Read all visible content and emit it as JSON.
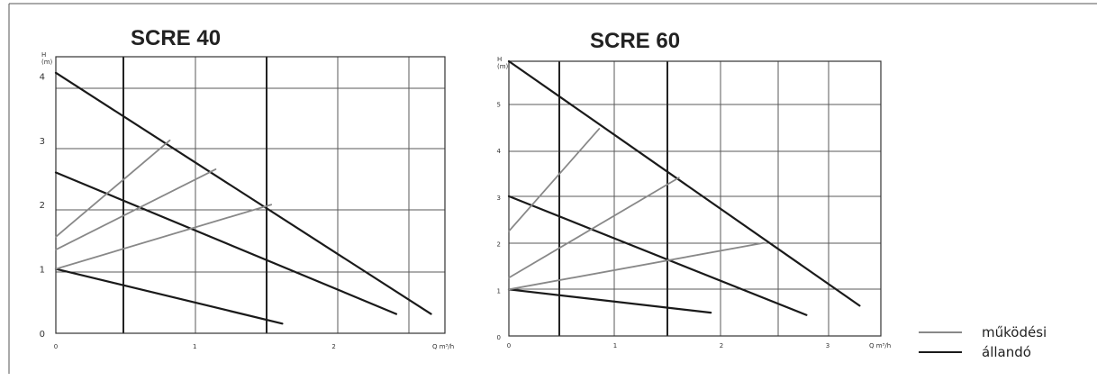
{
  "legend": {
    "items": [
      {
        "label": "működési",
        "color": "#888888"
      },
      {
        "label": "állandó",
        "color": "#1a1a1a"
      }
    ]
  },
  "chart_data": [
    {
      "type": "line",
      "title": "SCRE 40",
      "ylabel": [
        "H",
        "(m)"
      ],
      "xlabel": "Q m³/h",
      "xlim": [
        0,
        2.8
      ],
      "ylim": [
        0,
        4.3
      ],
      "x_ticks": [
        0,
        1,
        2
      ],
      "y_ticks": [
        0,
        1,
        2,
        3,
        4
      ],
      "grid": true,
      "series": [
        {
          "kind": "állandó",
          "points": [
            [
              0,
              4.05
            ],
            [
              2.7,
              0.3
            ]
          ]
        },
        {
          "kind": "állandó",
          "points": [
            [
              0,
              2.5
            ],
            [
              2.45,
              0.3
            ]
          ]
        },
        {
          "kind": "állandó",
          "points": [
            [
              0,
              1.0
            ],
            [
              1.63,
              0.15
            ]
          ]
        },
        {
          "kind": "működési",
          "points": [
            [
              0,
              1.5
            ],
            [
              0.82,
              3.0
            ]
          ]
        },
        {
          "kind": "működési",
          "points": [
            [
              0,
              1.3
            ],
            [
              1.15,
              2.55
            ]
          ]
        },
        {
          "kind": "működési",
          "points": [
            [
              0,
              1.0
            ],
            [
              1.55,
              2.0
            ]
          ]
        }
      ]
    },
    {
      "type": "line",
      "title": "SCRE 60",
      "ylabel": [
        "H",
        "(m)"
      ],
      "xlabel": "Q m³/h",
      "xlim": [
        0,
        3.5
      ],
      "ylim": [
        0,
        5.9
      ],
      "x_ticks": [
        0,
        1,
        2,
        3
      ],
      "y_ticks": [
        0,
        1,
        2,
        3,
        4,
        5
      ],
      "grid": true,
      "series": [
        {
          "kind": "állandó",
          "points": [
            [
              0,
              5.9
            ],
            [
              3.3,
              0.65
            ]
          ]
        },
        {
          "kind": "állandó",
          "points": [
            [
              0,
              3.0
            ],
            [
              2.8,
              0.45
            ]
          ]
        },
        {
          "kind": "állandó",
          "points": [
            [
              0,
              1.0
            ],
            [
              1.9,
              0.5
            ]
          ]
        },
        {
          "kind": "működési",
          "points": [
            [
              0,
              2.25
            ],
            [
              0.85,
              4.45
            ]
          ]
        },
        {
          "kind": "működési",
          "points": [
            [
              0,
              1.25
            ],
            [
              1.6,
              3.4
            ]
          ]
        },
        {
          "kind": "működési",
          "points": [
            [
              0,
              1.0
            ],
            [
              2.4,
              2.0
            ]
          ]
        }
      ]
    }
  ]
}
